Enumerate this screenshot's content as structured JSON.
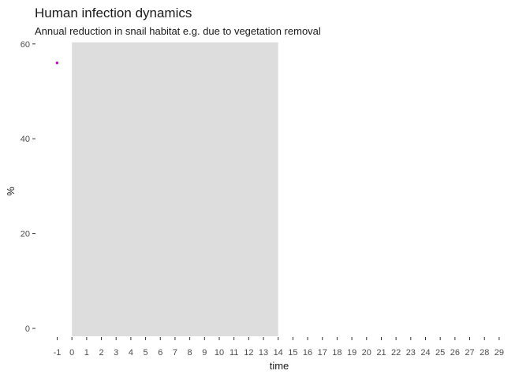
{
  "chart_data": {
    "type": "scatter",
    "title": "Human infection dynamics",
    "subtitle": "Annual reduction in snail habitat e.g. due to vegetation removal",
    "xlabel": "time",
    "ylabel": "%",
    "xlim": [
      -1,
      29
    ],
    "ylim": [
      0,
      60
    ],
    "x_ticks": [
      -1,
      0,
      1,
      2,
      3,
      4,
      5,
      6,
      7,
      8,
      9,
      10,
      11,
      12,
      13,
      14,
      15,
      16,
      17,
      18,
      19,
      20,
      21,
      22,
      23,
      24,
      25,
      26,
      27,
      28,
      29
    ],
    "y_ticks": [
      0,
      20,
      40,
      60
    ],
    "shaded_region": {
      "x_start": 0,
      "x_end": 14,
      "color": "#dddddd"
    },
    "grid": false,
    "series": [
      {
        "color": "#cc00cc",
        "points": [
          {
            "x": -1,
            "y": 56
          }
        ]
      }
    ]
  }
}
